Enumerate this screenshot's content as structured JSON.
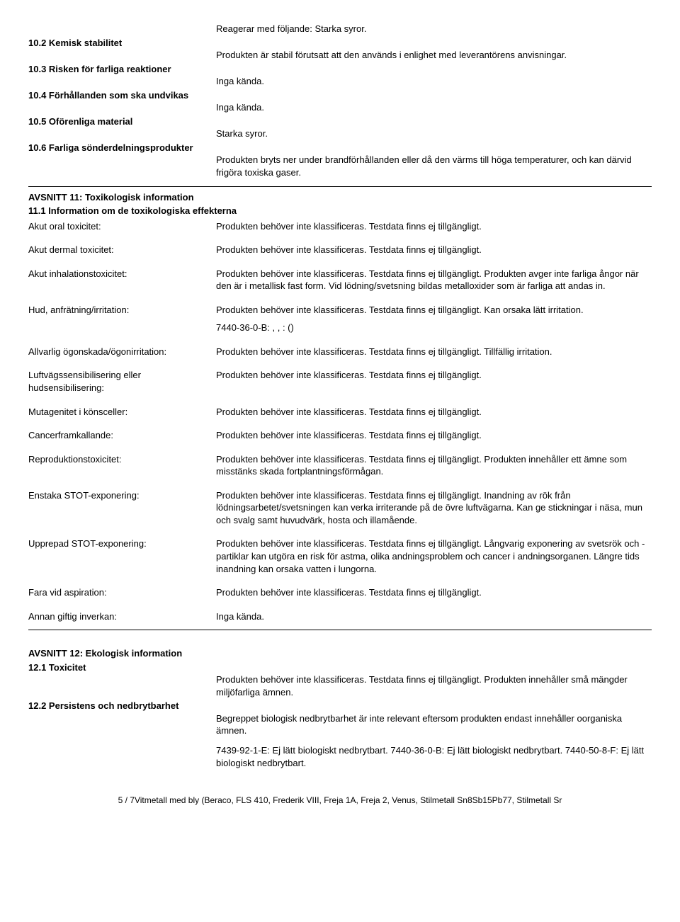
{
  "section10": {
    "s10_2": {
      "h": "10.2 Kemisk stabilitet",
      "l1": "Reagerar med följande: Starka syror.",
      "l2": "Produkten är stabil förutsatt att den används i enlighet med leverantörens anvisningar."
    },
    "s10_3": {
      "h": "10.3 Risken för farliga reaktioner",
      "v": "Inga kända."
    },
    "s10_4": {
      "h": "10.4 Förhållanden som ska undvikas",
      "v": "Inga kända."
    },
    "s10_5": {
      "h": "10.5 Oförenliga material",
      "v": "Starka syror."
    },
    "s10_6": {
      "h": "10.6 Farliga sönderdelningsprodukter",
      "v": "Produkten bryts ner under brandförhållanden eller då den värms till höga temperaturer, och kan därvid frigöra toxiska gaser."
    }
  },
  "section11": {
    "title": "AVSNITT 11: Toxikologisk information",
    "sub": "11.1 Information om de toxikologiska effekterna",
    "rows": [
      {
        "label": "Akut oral toxicitet:",
        "value": "Produkten behöver inte klassificeras. Testdata finns ej tillgängligt."
      },
      {
        "label": "Akut dermal toxicitet:",
        "value": "Produkten behöver inte klassificeras. Testdata finns ej tillgängligt."
      },
      {
        "label": "Akut inhalationstoxicitet:",
        "value": "Produkten behöver inte klassificeras. Testdata finns ej tillgängligt. Produkten avger inte farliga ångor när den är i metallisk fast form. Vid lödning/svetsning bildas metalloxider som är farliga att andas in."
      },
      {
        "label": "Hud, anfrätning/irritation:",
        "value": "Produkten behöver inte klassificeras. Testdata finns ej tillgängligt. Kan orsaka lätt irritation.",
        "value2": "7440-36-0-B: , , : ()"
      },
      {
        "label": "Allvarlig ögonskada/ögonirritation:",
        "value": "Produkten behöver inte klassificeras. Testdata finns ej tillgängligt. Tillfällig irritation."
      },
      {
        "label": "Luftvägssensibilisering eller hudsensibilisering:",
        "value": "Produkten behöver inte klassificeras. Testdata finns ej tillgängligt."
      },
      {
        "label": "Mutagenitet i könsceller:",
        "value": "Produkten behöver inte klassificeras. Testdata finns ej tillgängligt."
      },
      {
        "label": "Cancerframkallande:",
        "value": "Produkten behöver inte klassificeras. Testdata finns ej tillgängligt."
      },
      {
        "label": "Reproduktionstoxicitet:",
        "value": "Produkten behöver inte klassificeras. Testdata finns ej tillgängligt. Produkten innehåller ett ämne som misstänks skada fortplantningsförmågan."
      },
      {
        "label": "Enstaka STOT-exponering:",
        "value": "Produkten behöver inte klassificeras. Testdata finns ej tillgängligt. Inandning av rök från lödningsarbetet/svetsningen kan verka irriterande på de övre luftvägarna. Kan ge stickningar i näsa, mun och svalg samt huvudvärk, hosta och illamående."
      },
      {
        "label": "Upprepad STOT-exponering:",
        "value": "Produkten behöver inte klassificeras. Testdata finns ej tillgängligt. Långvarig exponering av svetsrök och -partiklar kan utgöra en risk för astma, olika andningsproblem och cancer i andningsorganen. Längre tids inandning kan orsaka vatten i lungorna."
      },
      {
        "label": "Fara vid aspiration:",
        "value": "Produkten behöver inte klassificeras. Testdata finns ej tillgängligt."
      },
      {
        "label": "Annan giftig inverkan:",
        "value": "Inga kända."
      }
    ]
  },
  "section12": {
    "title": "AVSNITT 12: Ekologisk information",
    "s12_1": {
      "h": "12.1 Toxicitet",
      "v": "Produkten behöver inte klassificeras. Testdata finns ej tillgängligt. Produkten innehåller små mängder miljöfarliga ämnen."
    },
    "s12_2": {
      "h": "12.2 Persistens och nedbrytbarhet",
      "v1": "Begreppet biologisk nedbrytbarhet är inte relevant eftersom produkten endast innehåller oorganiska ämnen.",
      "v2": "7439-92-1-E: Ej lätt biologiskt nedbrytbart. 7440-36-0-B: Ej lätt biologiskt nedbrytbart. 7440-50-8-F: Ej lätt biologiskt nedbrytbart."
    }
  },
  "footer": "5 / 7Vitmetall med bly (Beraco, FLS 410, Frederik VIII, Freja 1A, Freja 2, Venus, Stilmetall Sn8Sb15Pb77, Stilmetall Sr"
}
